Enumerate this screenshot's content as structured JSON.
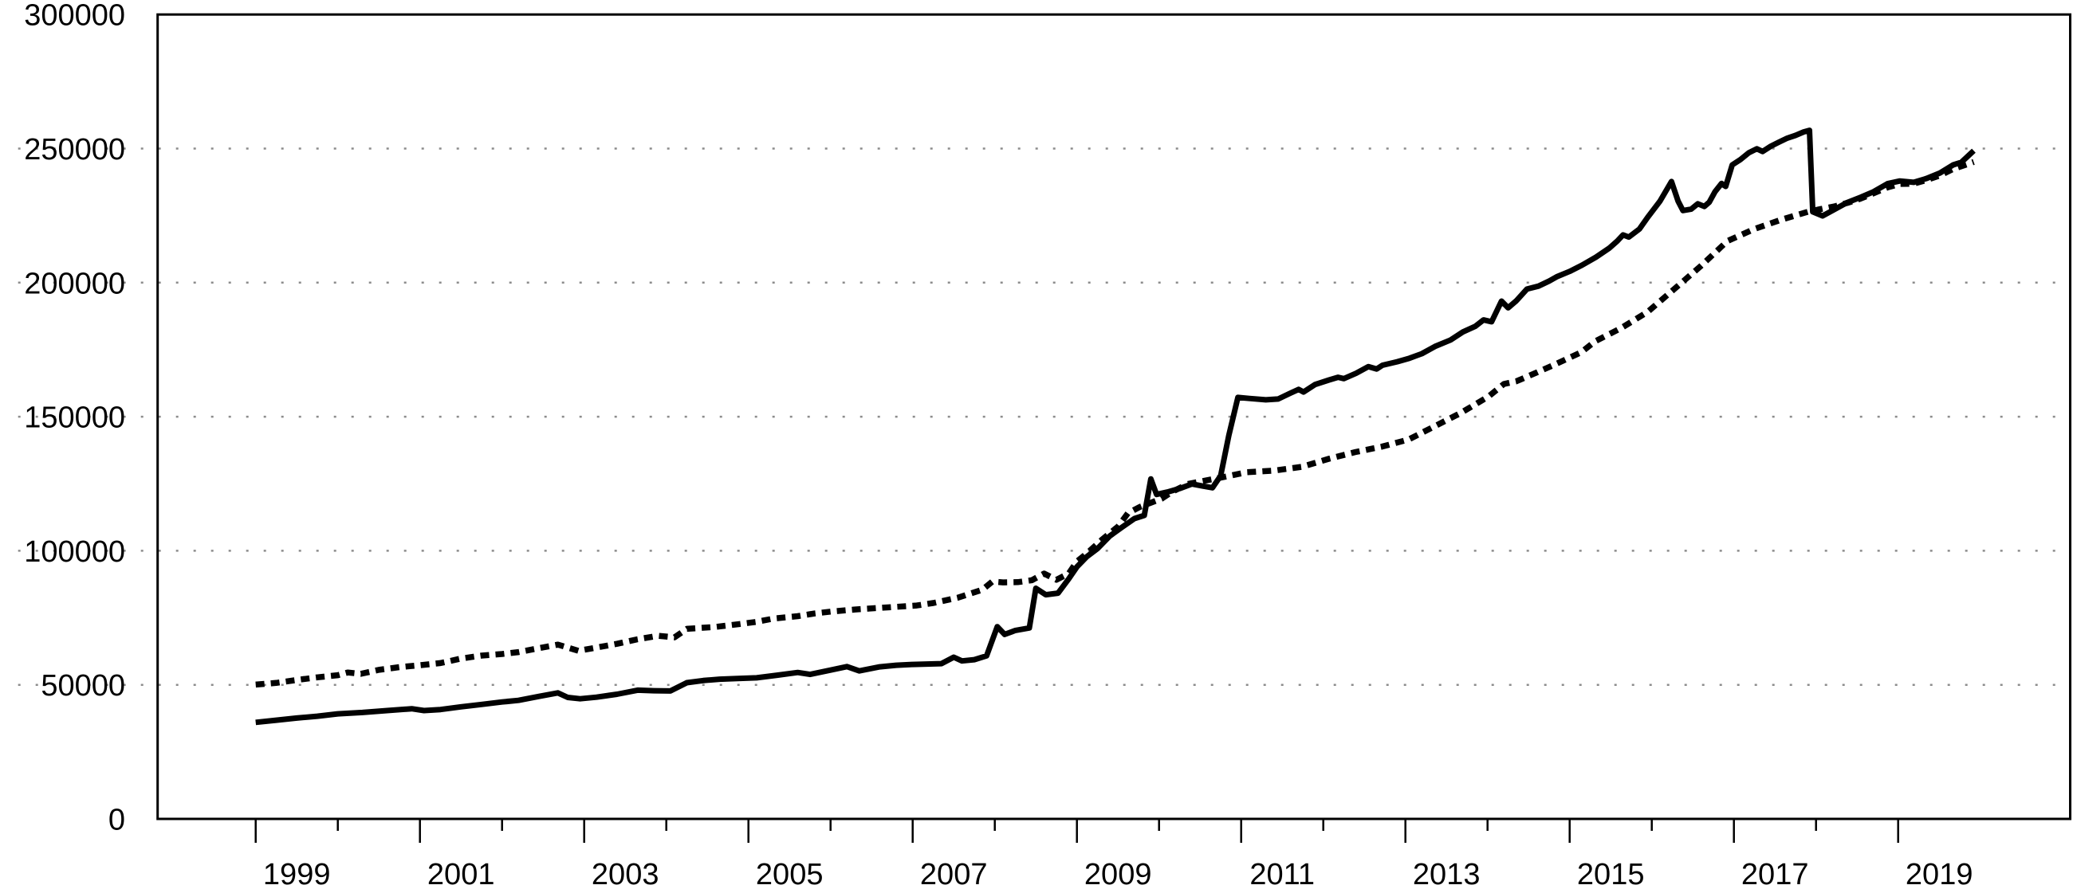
{
  "figure": {
    "background": "#ffffff",
    "description": "Black-and-white monthly time-series line chart, two series (solid and dotted), no title, no legend, no axis titles"
  },
  "colors": {
    "series_line": "#000000",
    "axis_frame": "#000000",
    "gridline_dots": "#8c8c8c",
    "text": "#000000"
  },
  "y_axis": {
    "tick_values": [
      0,
      50000,
      100000,
      150000,
      200000,
      250000,
      300000
    ],
    "tick_labels": [
      "0",
      "50000",
      "100000",
      "150000",
      "200000",
      "250000",
      "300000"
    ]
  },
  "x_axis": {
    "tick_years": [
      1999,
      2000,
      2001,
      2002,
      2003,
      2004,
      2005,
      2006,
      2007,
      2008,
      2009,
      2010,
      2011,
      2012,
      2013,
      2014,
      2015,
      2016,
      2017,
      2018,
      2019
    ],
    "major_label_years": [
      1999,
      2001,
      2003,
      2005,
      2007,
      2009,
      2011,
      2013,
      2015,
      2017,
      2019
    ],
    "labels": [
      "1999",
      "2001",
      "2003",
      "2005",
      "2007",
      "2009",
      "2011",
      "2013",
      "2015",
      "2017",
      "2019"
    ]
  },
  "chart_data": {
    "type": "line",
    "title": "",
    "xlabel": "",
    "ylabel": "",
    "legend": "none",
    "grid": "horizontal dotted gridlines at 50000..250000",
    "ylim": [
      0,
      300000
    ],
    "x_domain_years": [
      1997.8,
      2021.1
    ],
    "data_span": "monthly, Jan 1999 - Dec 2019",
    "y_gridlines": [
      50000,
      100000,
      150000,
      200000,
      250000
    ],
    "series": [
      {
        "name": "solid-series",
        "style": "solid",
        "points": [
          [
            1999.0,
            36000
          ],
          [
            1999.25,
            36800
          ],
          [
            1999.5,
            37600
          ],
          [
            1999.75,
            38300
          ],
          [
            2000.0,
            39200
          ],
          [
            2000.3,
            39700
          ],
          [
            2000.6,
            40400
          ],
          [
            2000.9,
            41100
          ],
          [
            2001.05,
            40400
          ],
          [
            2001.25,
            40800
          ],
          [
            2001.5,
            41800
          ],
          [
            2001.75,
            42700
          ],
          [
            2002.0,
            43600
          ],
          [
            2002.2,
            44200
          ],
          [
            2002.45,
            45700
          ],
          [
            2002.68,
            47000
          ],
          [
            2002.8,
            45300
          ],
          [
            2002.95,
            44800
          ],
          [
            2003.15,
            45400
          ],
          [
            2003.4,
            46500
          ],
          [
            2003.65,
            48000
          ],
          [
            2003.85,
            47800
          ],
          [
            2004.05,
            47700
          ],
          [
            2004.25,
            50800
          ],
          [
            2004.45,
            51600
          ],
          [
            2004.65,
            52100
          ],
          [
            2004.9,
            52400
          ],
          [
            2005.1,
            52600
          ],
          [
            2005.35,
            53600
          ],
          [
            2005.6,
            54600
          ],
          [
            2005.75,
            53900
          ],
          [
            2006.0,
            55500
          ],
          [
            2006.2,
            56800
          ],
          [
            2006.35,
            55200
          ],
          [
            2006.6,
            56700
          ],
          [
            2006.8,
            57300
          ],
          [
            2007.0,
            57600
          ],
          [
            2007.35,
            57900
          ],
          [
            2007.5,
            60300
          ],
          [
            2007.6,
            58900
          ],
          [
            2007.75,
            59400
          ],
          [
            2007.9,
            60800
          ],
          [
            2008.03,
            71700
          ],
          [
            2008.12,
            68800
          ],
          [
            2008.25,
            70300
          ],
          [
            2008.42,
            71200
          ],
          [
            2008.5,
            86000
          ],
          [
            2008.62,
            83600
          ],
          [
            2008.77,
            84200
          ],
          [
            2008.9,
            89500
          ],
          [
            2009.0,
            94000
          ],
          [
            2009.12,
            97800
          ],
          [
            2009.25,
            100800
          ],
          [
            2009.4,
            105500
          ],
          [
            2009.55,
            108800
          ],
          [
            2009.7,
            112000
          ],
          [
            2009.82,
            113200
          ],
          [
            2009.9,
            126800
          ],
          [
            2009.97,
            121000
          ],
          [
            2010.1,
            121900
          ],
          [
            2010.25,
            123200
          ],
          [
            2010.4,
            124900
          ],
          [
            2010.52,
            124200
          ],
          [
            2010.65,
            123500
          ],
          [
            2010.75,
            128000
          ],
          [
            2010.85,
            143000
          ],
          [
            2010.96,
            157200
          ],
          [
            2011.1,
            156800
          ],
          [
            2011.3,
            156300
          ],
          [
            2011.45,
            156600
          ],
          [
            2011.6,
            158800
          ],
          [
            2011.7,
            160200
          ],
          [
            2011.76,
            159200
          ],
          [
            2011.9,
            162000
          ],
          [
            2012.07,
            163700
          ],
          [
            2012.18,
            164700
          ],
          [
            2012.25,
            164200
          ],
          [
            2012.4,
            166200
          ],
          [
            2012.55,
            168700
          ],
          [
            2012.65,
            167800
          ],
          [
            2012.72,
            169200
          ],
          [
            2012.9,
            170500
          ],
          [
            2013.05,
            171800
          ],
          [
            2013.2,
            173500
          ],
          [
            2013.36,
            176200
          ],
          [
            2013.55,
            178600
          ],
          [
            2013.7,
            181600
          ],
          [
            2013.85,
            183700
          ],
          [
            2013.95,
            186100
          ],
          [
            2014.05,
            185400
          ],
          [
            2014.17,
            193100
          ],
          [
            2014.25,
            190600
          ],
          [
            2014.35,
            193200
          ],
          [
            2014.48,
            197600
          ],
          [
            2014.62,
            198700
          ],
          [
            2014.75,
            200600
          ],
          [
            2014.85,
            202300
          ],
          [
            2015.0,
            204200
          ],
          [
            2015.15,
            206500
          ],
          [
            2015.32,
            209500
          ],
          [
            2015.48,
            212800
          ],
          [
            2015.58,
            215500
          ],
          [
            2015.65,
            217800
          ],
          [
            2015.72,
            217000
          ],
          [
            2015.85,
            220000
          ],
          [
            2015.95,
            224400
          ],
          [
            2016.1,
            230400
          ],
          [
            2016.24,
            237700
          ],
          [
            2016.32,
            230400
          ],
          [
            2016.38,
            226900
          ],
          [
            2016.48,
            227400
          ],
          [
            2016.56,
            229400
          ],
          [
            2016.64,
            228400
          ],
          [
            2016.7,
            230000
          ],
          [
            2016.77,
            233900
          ],
          [
            2016.85,
            237000
          ],
          [
            2016.9,
            235900
          ],
          [
            2016.98,
            243900
          ],
          [
            2017.08,
            245900
          ],
          [
            2017.18,
            248400
          ],
          [
            2017.28,
            249900
          ],
          [
            2017.35,
            248900
          ],
          [
            2017.45,
            250900
          ],
          [
            2017.55,
            252400
          ],
          [
            2017.65,
            253900
          ],
          [
            2017.75,
            254900
          ],
          [
            2017.85,
            256200
          ],
          [
            2017.92,
            256800
          ],
          [
            2017.96,
            226400
          ],
          [
            2018.08,
            224900
          ],
          [
            2018.2,
            226900
          ],
          [
            2018.38,
            229900
          ],
          [
            2018.55,
            231900
          ],
          [
            2018.7,
            233900
          ],
          [
            2018.87,
            236900
          ],
          [
            2019.02,
            237900
          ],
          [
            2019.19,
            237400
          ],
          [
            2019.35,
            238900
          ],
          [
            2019.51,
            240900
          ],
          [
            2019.67,
            243900
          ],
          [
            2019.77,
            244900
          ],
          [
            2019.84,
            246900
          ],
          [
            2019.92,
            249200
          ]
        ]
      },
      {
        "name": "dotted-series",
        "style": "dashed",
        "points": [
          [
            1999.0,
            50100
          ],
          [
            1999.25,
            50700
          ],
          [
            1999.5,
            51800
          ],
          [
            1999.75,
            52800
          ],
          [
            2000.0,
            53600
          ],
          [
            2000.12,
            54600
          ],
          [
            2000.28,
            54100
          ],
          [
            2000.5,
            55600
          ],
          [
            2000.75,
            56600
          ],
          [
            2001.0,
            57300
          ],
          [
            2001.25,
            58100
          ],
          [
            2001.5,
            59800
          ],
          [
            2001.75,
            60900
          ],
          [
            2002.0,
            61500
          ],
          [
            2002.2,
            62200
          ],
          [
            2002.45,
            63700
          ],
          [
            2002.68,
            65000
          ],
          [
            2002.93,
            62700
          ],
          [
            2003.15,
            63900
          ],
          [
            2003.4,
            65300
          ],
          [
            2003.65,
            67000
          ],
          [
            2003.9,
            68300
          ],
          [
            2004.1,
            67700
          ],
          [
            2004.25,
            70900
          ],
          [
            2004.6,
            71600
          ],
          [
            2004.9,
            72700
          ],
          [
            2005.1,
            73500
          ],
          [
            2005.3,
            74700
          ],
          [
            2005.6,
            75600
          ],
          [
            2005.8,
            76600
          ],
          [
            2006.0,
            77300
          ],
          [
            2006.3,
            78100
          ],
          [
            2006.6,
            78700
          ],
          [
            2007.05,
            79600
          ],
          [
            2007.25,
            80500
          ],
          [
            2007.55,
            82500
          ],
          [
            2007.85,
            85500
          ],
          [
            2007.97,
            88500
          ],
          [
            2008.1,
            88200
          ],
          [
            2008.28,
            88300
          ],
          [
            2008.45,
            89000
          ],
          [
            2008.6,
            91500
          ],
          [
            2008.75,
            89200
          ],
          [
            2008.9,
            91500
          ],
          [
            2009.0,
            96000
          ],
          [
            2009.12,
            99000
          ],
          [
            2009.3,
            104000
          ],
          [
            2009.5,
            109000
          ],
          [
            2009.62,
            114000
          ],
          [
            2009.77,
            116400
          ],
          [
            2009.9,
            117900
          ],
          [
            2010.03,
            119400
          ],
          [
            2010.16,
            122000
          ],
          [
            2010.35,
            124900
          ],
          [
            2010.5,
            125800
          ],
          [
            2010.74,
            127200
          ],
          [
            2011.07,
            129300
          ],
          [
            2011.4,
            129900
          ],
          [
            2011.74,
            131300
          ],
          [
            2012.07,
            134300
          ],
          [
            2012.39,
            136800
          ],
          [
            2012.71,
            138800
          ],
          [
            2013.04,
            141500
          ],
          [
            2013.2,
            144000
          ],
          [
            2013.36,
            146500
          ],
          [
            2013.68,
            151500
          ],
          [
            2014.01,
            157500
          ],
          [
            2014.2,
            162200
          ],
          [
            2014.35,
            163200
          ],
          [
            2014.6,
            166500
          ],
          [
            2014.82,
            169500
          ],
          [
            2015.14,
            174000
          ],
          [
            2015.31,
            178100
          ],
          [
            2015.63,
            183100
          ],
          [
            2015.95,
            189100
          ],
          [
            2016.27,
            197500
          ],
          [
            2016.59,
            206000
          ],
          [
            2016.92,
            215500
          ],
          [
            2017.25,
            220000
          ],
          [
            2017.57,
            223400
          ],
          [
            2017.9,
            226400
          ],
          [
            2018.05,
            227400
          ],
          [
            2018.22,
            228400
          ],
          [
            2018.38,
            229700
          ],
          [
            2018.54,
            231300
          ],
          [
            2018.7,
            233300
          ],
          [
            2018.87,
            235500
          ],
          [
            2019.02,
            236800
          ],
          [
            2019.19,
            236900
          ],
          [
            2019.35,
            238300
          ],
          [
            2019.51,
            240000
          ],
          [
            2019.67,
            242400
          ],
          [
            2019.77,
            243400
          ],
          [
            2019.92,
            245000
          ]
        ]
      }
    ]
  }
}
